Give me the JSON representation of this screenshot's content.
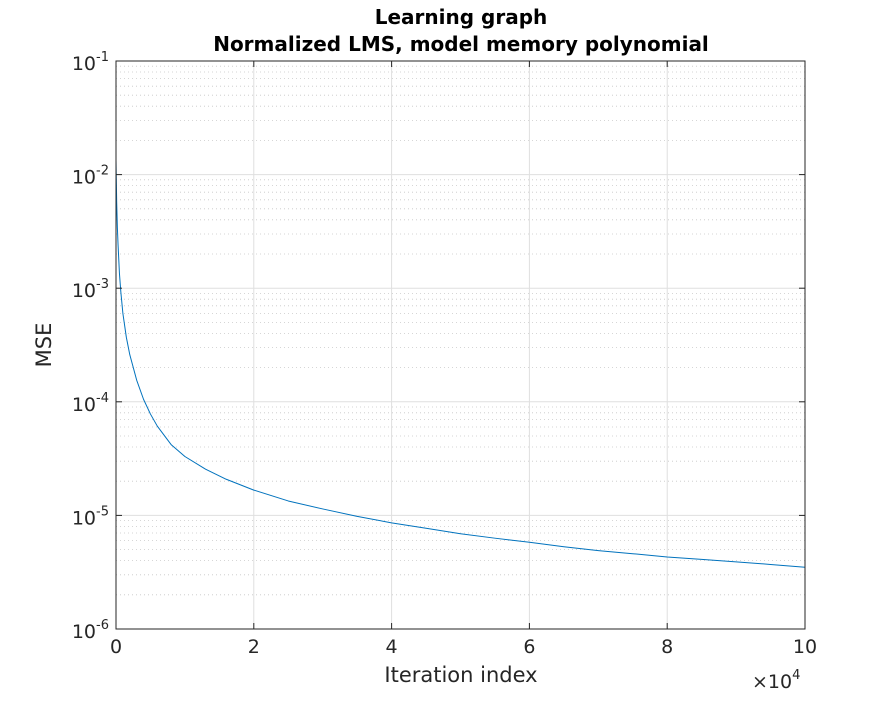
{
  "chart_data": {
    "type": "line",
    "title": "Learning graph",
    "subtitle": "Normalized LMS, model memory polynomial",
    "xlabel": "Iteration index",
    "ylabel": "MSE",
    "x_multiplier": {
      "times": "×",
      "base": "10",
      "exponent": "4"
    },
    "xlim": [
      0,
      100000
    ],
    "ylim": [
      1e-06,
      0.1
    ],
    "yscale": "log",
    "grid": true,
    "minor_grid": true,
    "x_ticks": [
      {
        "value": 0,
        "label": "0"
      },
      {
        "value": 20000,
        "label": "2"
      },
      {
        "value": 40000,
        "label": "4"
      },
      {
        "value": 60000,
        "label": "6"
      },
      {
        "value": 80000,
        "label": "8"
      },
      {
        "value": 100000,
        "label": "10"
      }
    ],
    "y_ticks": [
      {
        "value": 0.1,
        "base": "10",
        "exp": "-1"
      },
      {
        "value": 0.01,
        "base": "10",
        "exp": "-2"
      },
      {
        "value": 0.001,
        "base": "10",
        "exp": "-3"
      },
      {
        "value": 0.0001,
        "base": "10",
        "exp": "-4"
      },
      {
        "value": 1e-05,
        "base": "10",
        "exp": "-5"
      },
      {
        "value": 1e-06,
        "base": "10",
        "exp": "-6"
      }
    ],
    "series": [
      {
        "color": "#0072BD",
        "x": [
          1,
          50,
          100,
          200,
          300,
          500,
          700,
          1000,
          1500,
          2000,
          3000,
          4000,
          5000,
          6000,
          8000,
          10000,
          13000,
          16000,
          20000,
          25000,
          30000,
          35000,
          40000,
          45000,
          50000,
          55000,
          60000,
          65000,
          70000,
          75000,
          80000,
          85000,
          90000,
          95000,
          100000
        ],
        "values": [
          0.0133,
          0.0088,
          0.0057,
          0.0034,
          0.0024,
          0.00135,
          0.00093,
          0.0006,
          0.00037,
          0.00026,
          0.000155,
          0.000105,
          7.8e-05,
          6.1e-05,
          4.2e-05,
          3.3e-05,
          2.55e-05,
          2.08e-05,
          1.67e-05,
          1.34e-05,
          1.14e-05,
          9.8e-06,
          8.6e-06,
          7.7e-06,
          6.9e-06,
          6.3e-06,
          5.8e-06,
          5.3e-06,
          4.9e-06,
          4.6e-06,
          4.3e-06,
          4.1e-06,
          3.9e-06,
          3.7e-06,
          3.5e-06
        ]
      }
    ]
  }
}
